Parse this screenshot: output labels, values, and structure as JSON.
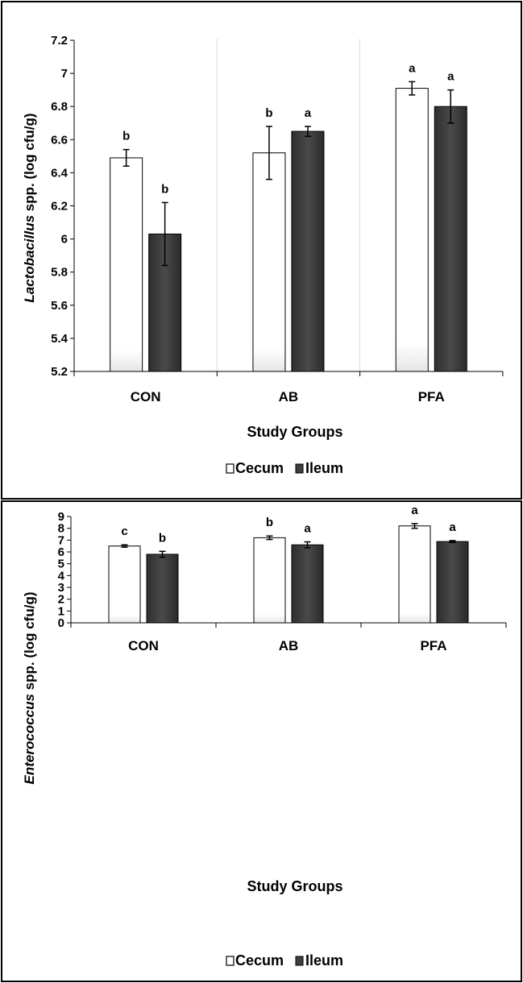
{
  "chart_data": [
    {
      "type": "bar",
      "categories": [
        "CON",
        "AB",
        "PFA"
      ],
      "series": [
        {
          "name": "Cecum",
          "values": [
            6.49,
            6.52,
            6.91
          ],
          "errors": [
            0.05,
            0.16,
            0.04
          ],
          "letters": [
            "b",
            "b",
            "a"
          ],
          "color": "#ffffff"
        },
        {
          "name": "Ileum",
          "values": [
            6.03,
            6.65,
            6.8
          ],
          "errors": [
            0.19,
            0.03,
            0.1
          ],
          "letters": [
            "b",
            "a",
            "a"
          ],
          "color": "#3f3f3f"
        }
      ],
      "ylabel_italic": "Lactobacillus",
      "ylabel_rest": " spp. (log cfu/g)",
      "xlabel": "Study Groups",
      "ylim": [
        5.2,
        7.2
      ],
      "yticks": [
        "5.2",
        "5.4",
        "5.6",
        "5.8",
        "6",
        "6.2",
        "6.4",
        "6.6",
        "6.8",
        "7",
        "7.2"
      ],
      "grid": "vertical",
      "legend": "bottom"
    },
    {
      "type": "bar",
      "categories": [
        "CON",
        "AB",
        "PFA"
      ],
      "series": [
        {
          "name": "Cecum",
          "values": [
            6.5,
            7.2,
            8.2
          ],
          "errors": [
            0.1,
            0.15,
            0.2
          ],
          "letters": [
            "c",
            "b",
            "a"
          ],
          "color": "#ffffff"
        },
        {
          "name": "Ileum",
          "values": [
            5.8,
            6.6,
            6.88
          ],
          "errors": [
            0.25,
            0.25,
            0.08
          ],
          "letters": [
            "b",
            "a",
            "a"
          ],
          "color": "#3f3f3f"
        }
      ],
      "ylabel_italic": "Enterococcus",
      "ylabel_rest": " spp. (log cfu/g)",
      "xlabel": "Study Groups",
      "ylim": [
        0,
        9
      ],
      "yticks": [
        "0",
        "1",
        "2",
        "3",
        "4",
        "5",
        "6",
        "7",
        "8",
        "9"
      ],
      "grid": "none",
      "legend": "bottom"
    }
  ]
}
